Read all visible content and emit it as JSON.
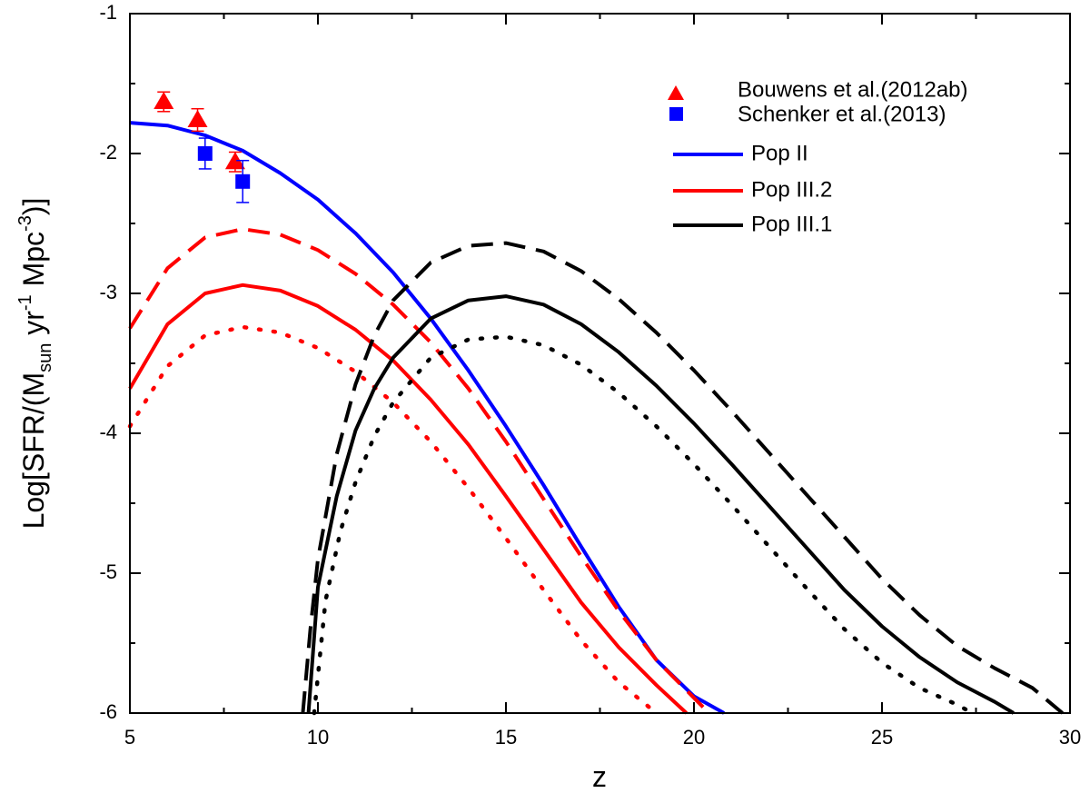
{
  "chart_data": {
    "type": "line",
    "xlabel": "z",
    "ylabel_parts": {
      "prefix": "Log[SFR/(M",
      "sun": "sun",
      "yr": " yr",
      "yr_exp": "-1",
      "mpc": " Mpc",
      "mpc_exp": "-3",
      "suffix": ")]"
    },
    "xlim": [
      5,
      30
    ],
    "ylim": [
      -6,
      -1
    ],
    "xticks": [
      5,
      10,
      15,
      20,
      25,
      30
    ],
    "yticks": [
      -6,
      -5,
      -4,
      -3,
      -2,
      -1
    ],
    "xtick_labels": [
      "5",
      "10",
      "15",
      "20",
      "25",
      "30"
    ],
    "ytick_labels": [
      "-6",
      "-5",
      "-4",
      "-3",
      "-2",
      "-1"
    ],
    "legend_position": "top-right",
    "legend": [
      {
        "label": "Bouwens et al.(2012ab)",
        "kind": "marker",
        "marker": "triangle",
        "color": "#ff0000"
      },
      {
        "label": "Schenker et al.(2013)",
        "kind": "marker",
        "marker": "square",
        "color": "#0000ff"
      },
      {
        "label": "Pop II",
        "kind": "line",
        "color": "#0000ff"
      },
      {
        "label": "Pop III.2",
        "kind": "line",
        "color": "#ff0000"
      },
      {
        "label": "Pop III.1",
        "kind": "line",
        "color": "#000000"
      }
    ],
    "series": [
      {
        "group": "Pop II",
        "style": "solid",
        "color": "#0000ff",
        "points": [
          [
            5,
            -1.78
          ],
          [
            6,
            -1.8
          ],
          [
            7,
            -1.87
          ],
          [
            8,
            -1.98
          ],
          [
            9,
            -2.14
          ],
          [
            10,
            -2.33
          ],
          [
            11,
            -2.57
          ],
          [
            12,
            -2.85
          ],
          [
            13,
            -3.18
          ],
          [
            14,
            -3.55
          ],
          [
            15,
            -3.95
          ],
          [
            16,
            -4.37
          ],
          [
            17,
            -4.81
          ],
          [
            18,
            -5.24
          ],
          [
            19,
            -5.62
          ],
          [
            20,
            -5.88
          ],
          [
            20.8,
            -6.0
          ]
        ]
      },
      {
        "group": "Pop III.2",
        "style": "dashed",
        "color": "#ff0000",
        "points": [
          [
            5,
            -3.25
          ],
          [
            6,
            -2.82
          ],
          [
            7,
            -2.6
          ],
          [
            8,
            -2.54
          ],
          [
            9,
            -2.58
          ],
          [
            10,
            -2.69
          ],
          [
            11,
            -2.86
          ],
          [
            12,
            -3.08
          ],
          [
            13,
            -3.35
          ],
          [
            14,
            -3.68
          ],
          [
            15,
            -4.06
          ],
          [
            16,
            -4.47
          ],
          [
            17,
            -4.88
          ],
          [
            18,
            -5.27
          ],
          [
            19,
            -5.62
          ],
          [
            20.4,
            -6.0
          ]
        ]
      },
      {
        "group": "Pop III.2",
        "style": "solid",
        "color": "#ff0000",
        "points": [
          [
            5,
            -3.68
          ],
          [
            6,
            -3.22
          ],
          [
            7,
            -3.0
          ],
          [
            8,
            -2.94
          ],
          [
            9,
            -2.98
          ],
          [
            10,
            -3.09
          ],
          [
            11,
            -3.26
          ],
          [
            12,
            -3.48
          ],
          [
            13,
            -3.76
          ],
          [
            14,
            -4.08
          ],
          [
            15,
            -4.45
          ],
          [
            16,
            -4.83
          ],
          [
            17,
            -5.21
          ],
          [
            18,
            -5.53
          ],
          [
            19,
            -5.8
          ],
          [
            19.8,
            -6.0
          ]
        ]
      },
      {
        "group": "Pop III.2",
        "style": "dotted",
        "color": "#ff0000",
        "points": [
          [
            5,
            -3.95
          ],
          [
            6,
            -3.52
          ],
          [
            7,
            -3.3
          ],
          [
            8,
            -3.24
          ],
          [
            9,
            -3.28
          ],
          [
            10,
            -3.39
          ],
          [
            11,
            -3.56
          ],
          [
            12,
            -3.78
          ],
          [
            13,
            -4.06
          ],
          [
            14,
            -4.39
          ],
          [
            15,
            -4.75
          ],
          [
            16,
            -5.12
          ],
          [
            17,
            -5.48
          ],
          [
            18,
            -5.78
          ],
          [
            19,
            -6.0
          ]
        ]
      },
      {
        "group": "Pop III.1",
        "style": "dashed",
        "color": "#000000",
        "points": [
          [
            9.6,
            -6.0
          ],
          [
            9.8,
            -5.4
          ],
          [
            10,
            -4.9
          ],
          [
            10.5,
            -4.15
          ],
          [
            11,
            -3.65
          ],
          [
            11.5,
            -3.3
          ],
          [
            12,
            -3.05
          ],
          [
            13,
            -2.78
          ],
          [
            14,
            -2.66
          ],
          [
            15,
            -2.64
          ],
          [
            16,
            -2.7
          ],
          [
            17,
            -2.84
          ],
          [
            18,
            -3.04
          ],
          [
            19,
            -3.28
          ],
          [
            20,
            -3.55
          ],
          [
            21,
            -3.84
          ],
          [
            22,
            -4.14
          ],
          [
            23,
            -4.44
          ],
          [
            24,
            -4.74
          ],
          [
            25,
            -5.04
          ],
          [
            26,
            -5.3
          ],
          [
            27,
            -5.52
          ],
          [
            28,
            -5.68
          ],
          [
            29,
            -5.82
          ],
          [
            29.8,
            -6.0
          ]
        ]
      },
      {
        "group": "Pop III.1",
        "style": "solid",
        "color": "#000000",
        "points": [
          [
            9.75,
            -6.0
          ],
          [
            10,
            -5.1
          ],
          [
            10.5,
            -4.45
          ],
          [
            11,
            -3.98
          ],
          [
            11.5,
            -3.68
          ],
          [
            12,
            -3.46
          ],
          [
            13,
            -3.18
          ],
          [
            14,
            -3.05
          ],
          [
            15,
            -3.02
          ],
          [
            16,
            -3.08
          ],
          [
            17,
            -3.22
          ],
          [
            18,
            -3.42
          ],
          [
            19,
            -3.66
          ],
          [
            20,
            -3.93
          ],
          [
            21,
            -4.22
          ],
          [
            22,
            -4.52
          ],
          [
            23,
            -4.82
          ],
          [
            24,
            -5.12
          ],
          [
            25,
            -5.38
          ],
          [
            26,
            -5.6
          ],
          [
            27,
            -5.78
          ],
          [
            28,
            -5.92
          ],
          [
            28.5,
            -6.0
          ]
        ]
      },
      {
        "group": "Pop III.1",
        "style": "dotted",
        "color": "#000000",
        "points": [
          [
            9.9,
            -6.0
          ],
          [
            10.2,
            -5.2
          ],
          [
            10.6,
            -4.7
          ],
          [
            11,
            -4.35
          ],
          [
            11.5,
            -4.02
          ],
          [
            12,
            -3.78
          ],
          [
            13,
            -3.46
          ],
          [
            14,
            -3.33
          ],
          [
            15,
            -3.31
          ],
          [
            16,
            -3.37
          ],
          [
            17,
            -3.51
          ],
          [
            18,
            -3.71
          ],
          [
            19,
            -3.95
          ],
          [
            20,
            -4.22
          ],
          [
            21,
            -4.51
          ],
          [
            22,
            -4.81
          ],
          [
            23,
            -5.11
          ],
          [
            24,
            -5.4
          ],
          [
            25,
            -5.64
          ],
          [
            26,
            -5.82
          ],
          [
            27,
            -5.94
          ],
          [
            27.4,
            -6.0
          ]
        ]
      }
    ],
    "observations": [
      {
        "name": "Bouwens et al.(2012ab)",
        "marker": "triangle",
        "color": "#ff0000",
        "points": [
          {
            "x": 5.9,
            "y": -1.63,
            "err": 0.07
          },
          {
            "x": 6.8,
            "y": -1.76,
            "err": 0.08
          },
          {
            "x": 7.8,
            "y": -2.06,
            "err": 0.07
          }
        ]
      },
      {
        "name": "Schenker et al.(2013)",
        "marker": "square",
        "color": "#0000ff",
        "points": [
          {
            "x": 7.0,
            "y": -2.0,
            "err": 0.11
          },
          {
            "x": 8.0,
            "y": -2.2,
            "err": 0.15
          }
        ]
      }
    ]
  }
}
